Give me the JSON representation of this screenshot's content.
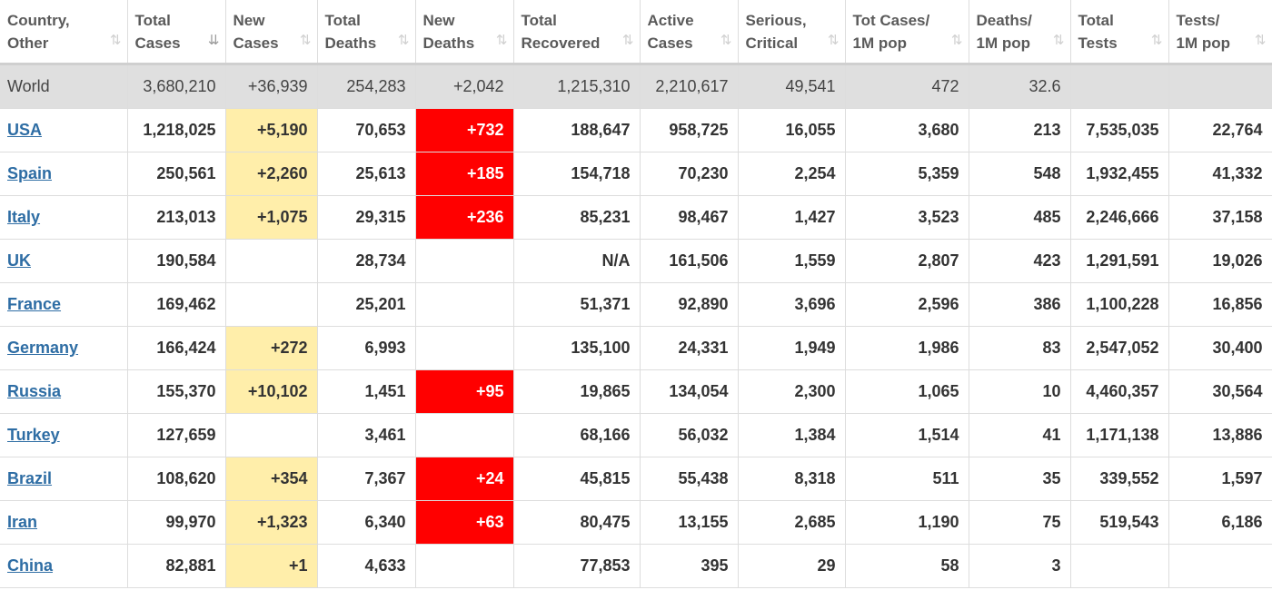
{
  "headers": [
    {
      "line1": "Country,",
      "line2": "Other",
      "sort": "⇅",
      "active": false
    },
    {
      "line1": "Total",
      "line2": "Cases",
      "sort": "⇊",
      "active": true
    },
    {
      "line1": "New",
      "line2": "Cases",
      "sort": "⇅",
      "active": false
    },
    {
      "line1": "Total",
      "line2": "Deaths",
      "sort": "⇅",
      "active": false
    },
    {
      "line1": "New",
      "line2": "Deaths",
      "sort": "⇅",
      "active": false
    },
    {
      "line1": "Total",
      "line2": "Recovered",
      "sort": "⇅",
      "active": false
    },
    {
      "line1": "Active",
      "line2": "Cases",
      "sort": "⇅",
      "active": false
    },
    {
      "line1": "Serious,",
      "line2": "Critical",
      "sort": "⇅",
      "active": false
    },
    {
      "line1": "Tot Cases/",
      "line2": "1M pop",
      "sort": "⇅",
      "active": false
    },
    {
      "line1": "Deaths/",
      "line2": "1M pop",
      "sort": "⇅",
      "active": false
    },
    {
      "line1": "Total",
      "line2": "Tests",
      "sort": "⇅",
      "active": false
    },
    {
      "line1": "Tests/",
      "line2": "1M pop",
      "sort": "⇅",
      "active": false
    }
  ],
  "world": [
    "World",
    "3,680,210",
    "+36,939",
    "254,283",
    "+2,042",
    "1,215,310",
    "2,210,617",
    "49,541",
    "472",
    "32.6",
    "",
    ""
  ],
  "rows": [
    [
      "USA",
      "1,218,025",
      "+5,190",
      "70,653",
      "+732",
      "188,647",
      "958,725",
      "16,055",
      "3,680",
      "213",
      "7,535,035",
      "22,764"
    ],
    [
      "Spain",
      "250,561",
      "+2,260",
      "25,613",
      "+185",
      "154,718",
      "70,230",
      "2,254",
      "5,359",
      "548",
      "1,932,455",
      "41,332"
    ],
    [
      "Italy",
      "213,013",
      "+1,075",
      "29,315",
      "+236",
      "85,231",
      "98,467",
      "1,427",
      "3,523",
      "485",
      "2,246,666",
      "37,158"
    ],
    [
      "UK",
      "190,584",
      "",
      "28,734",
      "",
      "N/A",
      "161,506",
      "1,559",
      "2,807",
      "423",
      "1,291,591",
      "19,026"
    ],
    [
      "France",
      "169,462",
      "",
      "25,201",
      "",
      "51,371",
      "92,890",
      "3,696",
      "2,596",
      "386",
      "1,100,228",
      "16,856"
    ],
    [
      "Germany",
      "166,424",
      "+272",
      "6,993",
      "",
      "135,100",
      "24,331",
      "1,949",
      "1,986",
      "83",
      "2,547,052",
      "30,400"
    ],
    [
      "Russia",
      "155,370",
      "+10,102",
      "1,451",
      "+95",
      "19,865",
      "134,054",
      "2,300",
      "1,065",
      "10",
      "4,460,357",
      "30,564"
    ],
    [
      "Turkey",
      "127,659",
      "",
      "3,461",
      "",
      "68,166",
      "56,032",
      "1,384",
      "1,514",
      "41",
      "1,171,138",
      "13,886"
    ],
    [
      "Brazil",
      "108,620",
      "+354",
      "7,367",
      "+24",
      "45,815",
      "55,438",
      "8,318",
      "511",
      "35",
      "339,552",
      "1,597"
    ],
    [
      "Iran",
      "99,970",
      "+1,323",
      "6,340",
      "+63",
      "80,475",
      "13,155",
      "2,685",
      "1,190",
      "75",
      "519,543",
      "6,186"
    ],
    [
      "China",
      "82,881",
      "+1",
      "4,633",
      "",
      "77,853",
      "395",
      "29",
      "58",
      "3",
      "",
      ""
    ]
  ],
  "colors": {
    "new_cases_bg": "#ffeeaa",
    "new_deaths_bg": "#ff0000",
    "link": "#2e6da4",
    "world_bg": "#dfdfdf"
  }
}
